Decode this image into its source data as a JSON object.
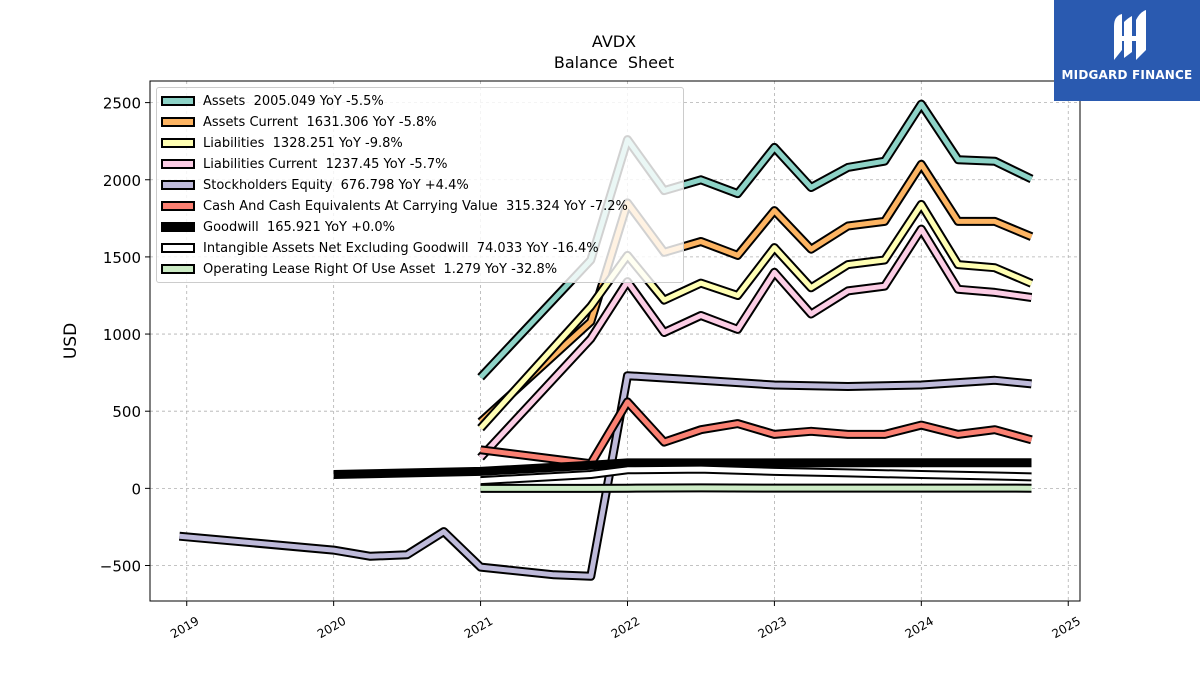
{
  "brand": {
    "name": "MIDGARD FINANCE",
    "color": "#2a5ab0"
  },
  "chart_data": {
    "type": "line",
    "title": "AVDX",
    "subtitle": "Balance  Sheet",
    "xlabel": "",
    "ylabel": "USD",
    "xlim": [
      2018.75,
      2025.08
    ],
    "ylim": [
      -730,
      2640
    ],
    "x_ticks": [
      "2019",
      "2020",
      "2021",
      "2022",
      "2023",
      "2024",
      "2025"
    ],
    "y_ticks": [
      -500,
      0,
      500,
      1000,
      1500,
      2000,
      2500
    ],
    "y_tick_labels": [
      "−500",
      "0",
      "500",
      "1000",
      "1500",
      "2000",
      "2500"
    ],
    "grid": true,
    "legend_position": "top-left",
    "series": [
      {
        "name": "Assets",
        "legend": "Assets  2005.049 YoY -5.5%",
        "color": "#8dd3c7",
        "x": [
          2021.0,
          2021.75,
          2022.0,
          2022.25,
          2022.5,
          2022.75,
          2023.0,
          2023.25,
          2023.5,
          2023.75,
          2024.0,
          2024.25,
          2024.5,
          2024.75
        ],
        "y": [
          720,
          1480,
          2260,
          1930,
          2000,
          1910,
          2210,
          1950,
          2080,
          2120,
          2490,
          2130,
          2120,
          2005
        ]
      },
      {
        "name": "Assets Current",
        "legend": "Assets Current  1631.306 YoY -5.8%",
        "color": "#fdb462",
        "x": [
          2021.0,
          2021.75,
          2022.0,
          2022.25,
          2022.5,
          2022.75,
          2023.0,
          2023.25,
          2023.5,
          2023.75,
          2024.0,
          2024.25,
          2024.5,
          2024.75
        ],
        "y": [
          430,
          1080,
          1850,
          1530,
          1600,
          1510,
          1800,
          1550,
          1700,
          1730,
          2100,
          1730,
          1730,
          1631
        ]
      },
      {
        "name": "Liabilities",
        "legend": "Liabilities  1328.251 YoY -9.8%",
        "color": "#ffffb3",
        "x": [
          2021.0,
          2021.75,
          2022.0,
          2022.25,
          2022.5,
          2022.75,
          2023.0,
          2023.25,
          2023.5,
          2023.75,
          2024.0,
          2024.25,
          2024.5,
          2024.75
        ],
        "y": [
          390,
          1180,
          1510,
          1220,
          1330,
          1250,
          1560,
          1300,
          1450,
          1480,
          1840,
          1450,
          1430,
          1328
        ]
      },
      {
        "name": "Liabilities Current",
        "legend": "Liabilities Current  1237.45 YoY -5.7%",
        "color": "#fccde5",
        "x": [
          2021.0,
          2021.75,
          2022.0,
          2022.25,
          2022.5,
          2022.75,
          2023.0,
          2023.25,
          2023.5,
          2023.75,
          2024.0,
          2024.25,
          2024.5,
          2024.75
        ],
        "y": [
          200,
          970,
          1340,
          1010,
          1120,
          1030,
          1400,
          1130,
          1280,
          1310,
          1680,
          1290,
          1270,
          1237
        ]
      },
      {
        "name": "Stockholders Equity",
        "legend": "Stockholders Equity  676.798 YoY +4.4%",
        "color": "#bebada",
        "x": [
          2018.95,
          2020.0,
          2020.25,
          2020.5,
          2020.75,
          2021.0,
          2021.5,
          2021.75,
          2022.0,
          2022.5,
          2023.0,
          2023.5,
          2024.0,
          2024.5,
          2024.75
        ],
        "y": [
          -310,
          -400,
          -440,
          -430,
          -280,
          -510,
          -560,
          -570,
          730,
          700,
          670,
          660,
          670,
          700,
          677
        ]
      },
      {
        "name": "Cash And Cash Equivalents At Carrying Value",
        "legend": "Cash And Cash Equivalents At Carrying Value  315.324 YoY -7.2%",
        "color": "#fb8072",
        "x": [
          2021.0,
          2021.75,
          2022.0,
          2022.25,
          2022.5,
          2022.75,
          2023.0,
          2023.25,
          2023.5,
          2023.75,
          2024.0,
          2024.25,
          2024.5,
          2024.75
        ],
        "y": [
          250,
          160,
          560,
          300,
          380,
          420,
          350,
          370,
          350,
          350,
          410,
          350,
          380,
          315
        ]
      },
      {
        "name": "Goodwill",
        "legend": "Goodwill  165.921 YoY +0.0%",
        "color": "#000000",
        "x": [
          2020.0,
          2021.0,
          2021.75,
          2022.0,
          2024.75
        ],
        "y": [
          90,
          110,
          150,
          165,
          166
        ]
      },
      {
        "name": "Intangible Assets Net Excluding Goodwill",
        "legend": "Intangible Assets Net Excluding Goodwill  74.033 YoY -16.4%",
        "color": "#ffffff",
        "x": [
          2021.0,
          2021.75,
          2022.0,
          2022.5,
          2023.0,
          2023.5,
          2024.0,
          2024.5,
          2024.75
        ],
        "y": [
          50,
          90,
          120,
          125,
          110,
          100,
          90,
          80,
          74
        ]
      },
      {
        "name": "Operating Lease Right Of Use Asset",
        "legend": "Operating Lease Right Of Use Asset  1.279 YoY -32.8%",
        "color": "#ccebc5",
        "x": [
          2021.0,
          2021.75,
          2022.0,
          2022.5,
          2023.0,
          2023.5,
          2024.0,
          2024.5,
          2024.75
        ],
        "y": [
          0,
          0,
          1,
          3,
          2,
          2,
          2,
          2,
          1
        ]
      }
    ]
  }
}
